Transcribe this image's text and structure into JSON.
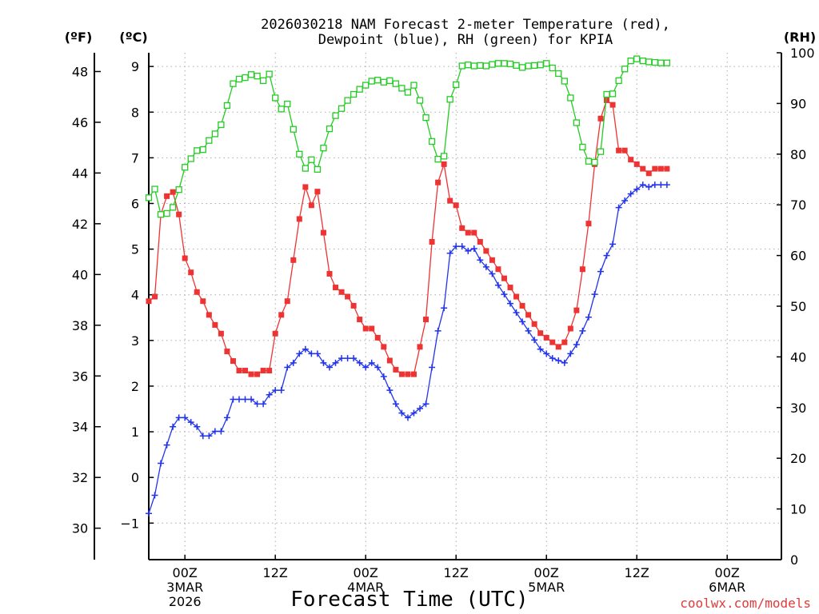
{
  "chart_data": {
    "type": "line",
    "title_lines": [
      "2026030218 NAM Forecast 2-meter Temperature (red),",
      "Dewpoint (blue), RH (green) for KPIA"
    ],
    "xlabel": "Forecast Time (UTC)",
    "credit": "coolwx.com/models",
    "axes": {
      "left_f": {
        "unit": "(ºF)",
        "ticks": [
          "30",
          "32",
          "34",
          "36",
          "38",
          "40",
          "42",
          "44",
          "46",
          "48"
        ],
        "tick_values_c": [
          -1.111,
          0,
          1.111,
          2.222,
          3.333,
          4.444,
          5.556,
          6.667,
          7.778,
          8.889
        ]
      },
      "left_c": {
        "unit": "(ºC)",
        "ticks": [
          "−1",
          "0",
          "1",
          "2",
          "3",
          "4",
          "5",
          "6",
          "7",
          "8",
          "9"
        ],
        "range": [
          -1.8,
          9.3
        ]
      },
      "right_rh": {
        "unit": "(RH)",
        "ticks": [
          "0",
          "10",
          "20",
          "30",
          "40",
          "50",
          "60",
          "70",
          "80",
          "90",
          "100"
        ],
        "range": [
          0,
          100
        ]
      }
    },
    "x_range_hours": [
      -6,
      99
    ],
    "x_ticks": [
      {
        "hour": 0,
        "lines": [
          "00Z",
          "3MAR",
          "2026"
        ]
      },
      {
        "hour": 15,
        "lines": [
          "12Z"
        ]
      },
      {
        "hour": 30,
        "lines": [
          "00Z",
          "4MAR"
        ]
      },
      {
        "hour": 45,
        "lines": [
          "12Z"
        ]
      },
      {
        "hour": 60,
        "lines": [
          "00Z",
          "5MAR"
        ]
      },
      {
        "hour": 75,
        "lines": [
          "12Z"
        ]
      },
      {
        "hour": 90,
        "lines": [
          "00Z",
          "6MAR"
        ]
      }
    ],
    "grid": true,
    "series": [
      {
        "name": "2-meter Temperature",
        "axis": "celsius",
        "color": "#ee3333",
        "marker": "filled-square",
        "points": [
          [
            -6.0,
            3.86
          ],
          [
            -5.0,
            3.96
          ],
          [
            -4.0,
            5.76
          ],
          [
            -3.0,
            6.16
          ],
          [
            -2.0,
            6.25
          ],
          [
            -1.0,
            5.76
          ],
          [
            0.0,
            4.8
          ],
          [
            1.0,
            4.49
          ],
          [
            2.0,
            4.06
          ],
          [
            3.0,
            3.86
          ],
          [
            4.0,
            3.56
          ],
          [
            5.0,
            3.34
          ],
          [
            6.0,
            3.15
          ],
          [
            7.0,
            2.76
          ],
          [
            8.0,
            2.55
          ],
          [
            9.0,
            2.34
          ],
          [
            10.0,
            2.34
          ],
          [
            11.0,
            2.26
          ],
          [
            12.0,
            2.26
          ],
          [
            13.0,
            2.34
          ],
          [
            14.0,
            2.34
          ],
          [
            15.0,
            3.15
          ],
          [
            16.0,
            3.56
          ],
          [
            17.0,
            3.86
          ],
          [
            18.0,
            4.76
          ],
          [
            19.0,
            5.66
          ],
          [
            20.0,
            6.36
          ],
          [
            21.0,
            5.96
          ],
          [
            22.0,
            6.26
          ],
          [
            23.0,
            5.36
          ],
          [
            24.0,
            4.46
          ],
          [
            25.0,
            4.16
          ],
          [
            26.0,
            4.06
          ],
          [
            27.0,
            3.96
          ],
          [
            28.0,
            3.76
          ],
          [
            29.0,
            3.46
          ],
          [
            30.0,
            3.26
          ],
          [
            31.0,
            3.26
          ],
          [
            32.0,
            3.06
          ],
          [
            33.0,
            2.86
          ],
          [
            34.0,
            2.56
          ],
          [
            35.0,
            2.36
          ],
          [
            36.0,
            2.26
          ],
          [
            37.0,
            2.26
          ],
          [
            38.0,
            2.26
          ],
          [
            39.0,
            2.86
          ],
          [
            40.0,
            3.46
          ],
          [
            41.0,
            5.16
          ],
          [
            42.0,
            6.46
          ],
          [
            43.0,
            6.86
          ],
          [
            44.0,
            6.06
          ],
          [
            45.0,
            5.96
          ],
          [
            46.0,
            5.46
          ],
          [
            47.0,
            5.36
          ],
          [
            48.0,
            5.36
          ],
          [
            49.0,
            5.16
          ],
          [
            50.0,
            4.96
          ],
          [
            51.0,
            4.76
          ],
          [
            52.0,
            4.56
          ],
          [
            53.0,
            4.36
          ],
          [
            54.0,
            4.16
          ],
          [
            55.0,
            3.96
          ],
          [
            56.0,
            3.76
          ],
          [
            57.0,
            3.56
          ],
          [
            58.0,
            3.36
          ],
          [
            59.0,
            3.16
          ],
          [
            60.0,
            3.06
          ],
          [
            61.0,
            2.96
          ],
          [
            62.0,
            2.86
          ],
          [
            63.0,
            2.96
          ],
          [
            64.0,
            3.26
          ],
          [
            65.0,
            3.66
          ],
          [
            66.0,
            4.56
          ],
          [
            67.0,
            5.56
          ],
          [
            68.0,
            6.86
          ],
          [
            69.0,
            7.86
          ],
          [
            70.0,
            8.26
          ],
          [
            71.0,
            8.16
          ],
          [
            72.0,
            7.16
          ],
          [
            73.0,
            7.16
          ],
          [
            74.0,
            6.96
          ],
          [
            75.0,
            6.86
          ],
          [
            76.0,
            6.76
          ],
          [
            77.0,
            6.66
          ],
          [
            78.0,
            6.76
          ],
          [
            79.0,
            6.76
          ],
          [
            80.0,
            6.76
          ]
        ]
      },
      {
        "name": "Dewpoint",
        "axis": "celsius",
        "color": "#2233ee",
        "marker": "plus",
        "points": [
          [
            -6.0,
            -0.79
          ],
          [
            -5.0,
            -0.39
          ],
          [
            -4.0,
            0.31
          ],
          [
            -3.0,
            0.71
          ],
          [
            -2.0,
            1.11
          ],
          [
            -1.0,
            1.31
          ],
          [
            0.0,
            1.31
          ],
          [
            1.0,
            1.21
          ],
          [
            2.0,
            1.11
          ],
          [
            3.0,
            0.91
          ],
          [
            4.0,
            0.91
          ],
          [
            5.0,
            1.01
          ],
          [
            6.0,
            1.01
          ],
          [
            7.0,
            1.31
          ],
          [
            8.0,
            1.71
          ],
          [
            9.0,
            1.71
          ],
          [
            10.0,
            1.71
          ],
          [
            11.0,
            1.71
          ],
          [
            12.0,
            1.61
          ],
          [
            13.0,
            1.61
          ],
          [
            14.0,
            1.81
          ],
          [
            15.0,
            1.91
          ],
          [
            16.0,
            1.91
          ],
          [
            17.0,
            2.41
          ],
          [
            18.0,
            2.51
          ],
          [
            19.0,
            2.71
          ],
          [
            20.0,
            2.81
          ],
          [
            21.0,
            2.71
          ],
          [
            22.0,
            2.71
          ],
          [
            23.0,
            2.51
          ],
          [
            24.0,
            2.41
          ],
          [
            25.0,
            2.51
          ],
          [
            26.0,
            2.61
          ],
          [
            27.0,
            2.61
          ],
          [
            28.0,
            2.61
          ],
          [
            29.0,
            2.51
          ],
          [
            30.0,
            2.41
          ],
          [
            31.0,
            2.51
          ],
          [
            32.0,
            2.41
          ],
          [
            33.0,
            2.21
          ],
          [
            34.0,
            1.91
          ],
          [
            35.0,
            1.61
          ],
          [
            36.0,
            1.41
          ],
          [
            37.0,
            1.31
          ],
          [
            38.0,
            1.41
          ],
          [
            39.0,
            1.51
          ],
          [
            40.0,
            1.61
          ],
          [
            41.0,
            2.41
          ],
          [
            42.0,
            3.21
          ],
          [
            43.0,
            3.71
          ],
          [
            44.0,
            4.91
          ],
          [
            45.0,
            5.06
          ],
          [
            46.0,
            5.06
          ],
          [
            47.0,
            4.96
          ],
          [
            48.0,
            5.01
          ],
          [
            49.0,
            4.76
          ],
          [
            50.0,
            4.61
          ],
          [
            51.0,
            4.46
          ],
          [
            52.0,
            4.21
          ],
          [
            53.0,
            4.01
          ],
          [
            54.0,
            3.81
          ],
          [
            55.0,
            3.61
          ],
          [
            56.0,
            3.41
          ],
          [
            57.0,
            3.21
          ],
          [
            58.0,
            3.01
          ],
          [
            59.0,
            2.81
          ],
          [
            60.0,
            2.71
          ],
          [
            61.0,
            2.61
          ],
          [
            62.0,
            2.56
          ],
          [
            63.0,
            2.51
          ],
          [
            64.0,
            2.71
          ],
          [
            65.0,
            2.91
          ],
          [
            66.0,
            3.21
          ],
          [
            67.0,
            3.51
          ],
          [
            68.0,
            4.01
          ],
          [
            69.0,
            4.51
          ],
          [
            70.0,
            4.86
          ],
          [
            71.0,
            5.11
          ],
          [
            72.0,
            5.91
          ],
          [
            73.0,
            6.06
          ],
          [
            74.0,
            6.21
          ],
          [
            75.0,
            6.31
          ],
          [
            76.0,
            6.41
          ],
          [
            77.0,
            6.36
          ],
          [
            78.0,
            6.41
          ],
          [
            79.0,
            6.41
          ],
          [
            80.0,
            6.41
          ]
        ]
      },
      {
        "name": "RH",
        "axis": "rh",
        "color": "#22cc22",
        "marker": "open-square",
        "points": [
          [
            -6.0,
            71.4
          ],
          [
            -5.0,
            73.1
          ],
          [
            -4.0,
            68.1
          ],
          [
            -3.0,
            68.3
          ],
          [
            -2.0,
            69.5
          ],
          [
            -1.0,
            73.0
          ],
          [
            0.0,
            77.4
          ],
          [
            1.0,
            79.1
          ],
          [
            2.0,
            80.7
          ],
          [
            3.0,
            80.9
          ],
          [
            4.0,
            82.7
          ],
          [
            5.0,
            84.0
          ],
          [
            6.0,
            85.8
          ],
          [
            7.0,
            89.6
          ],
          [
            8.0,
            93.9
          ],
          [
            9.0,
            94.8
          ],
          [
            10.0,
            95.1
          ],
          [
            11.0,
            95.7
          ],
          [
            12.0,
            95.4
          ],
          [
            13.0,
            94.5
          ],
          [
            14.0,
            95.8
          ],
          [
            15.0,
            91.1
          ],
          [
            16.0,
            88.9
          ],
          [
            17.0,
            89.9
          ],
          [
            18.0,
            84.9
          ],
          [
            19.0,
            80.0
          ],
          [
            20.0,
            77.2
          ],
          [
            21.0,
            78.9
          ],
          [
            22.0,
            77.0
          ],
          [
            23.0,
            81.2
          ],
          [
            24.0,
            85.0
          ],
          [
            25.0,
            87.6
          ],
          [
            26.0,
            89.0
          ],
          [
            27.0,
            90.6
          ],
          [
            28.0,
            91.8
          ],
          [
            29.0,
            92.8
          ],
          [
            30.0,
            93.6
          ],
          [
            31.0,
            94.4
          ],
          [
            32.0,
            94.6
          ],
          [
            33.0,
            94.2
          ],
          [
            34.0,
            94.5
          ],
          [
            35.0,
            93.9
          ],
          [
            36.0,
            93.0
          ],
          [
            37.0,
            92.2
          ],
          [
            38.0,
            93.6
          ],
          [
            39.0,
            90.6
          ],
          [
            40.0,
            87.2
          ],
          [
            41.0,
            82.5
          ],
          [
            42.0,
            79.0
          ],
          [
            43.0,
            79.6
          ],
          [
            44.0,
            90.8
          ],
          [
            45.0,
            93.7
          ],
          [
            46.0,
            97.4
          ],
          [
            47.0,
            97.6
          ],
          [
            48.0,
            97.4
          ],
          [
            49.0,
            97.5
          ],
          [
            50.0,
            97.4
          ],
          [
            51.0,
            97.7
          ],
          [
            52.0,
            97.9
          ],
          [
            53.0,
            97.9
          ],
          [
            54.0,
            97.8
          ],
          [
            55.0,
            97.5
          ],
          [
            56.0,
            97.1
          ],
          [
            57.0,
            97.4
          ],
          [
            58.0,
            97.5
          ],
          [
            59.0,
            97.6
          ],
          [
            60.0,
            97.9
          ],
          [
            61.0,
            97.0
          ],
          [
            62.0,
            95.9
          ],
          [
            63.0,
            94.4
          ],
          [
            64.0,
            91.1
          ],
          [
            65.0,
            86.2
          ],
          [
            66.0,
            81.4
          ],
          [
            67.0,
            78.6
          ],
          [
            68.0,
            78.4
          ],
          [
            69.0,
            80.5
          ],
          [
            70.0,
            91.8
          ],
          [
            71.0,
            91.9
          ],
          [
            72.0,
            94.5
          ],
          [
            73.0,
            96.8
          ],
          [
            74.0,
            98.4
          ],
          [
            75.0,
            98.8
          ],
          [
            76.0,
            98.4
          ],
          [
            77.0,
            98.2
          ],
          [
            78.0,
            98.1
          ],
          [
            79.0,
            98.0
          ],
          [
            80.0,
            98.0
          ]
        ]
      }
    ]
  }
}
